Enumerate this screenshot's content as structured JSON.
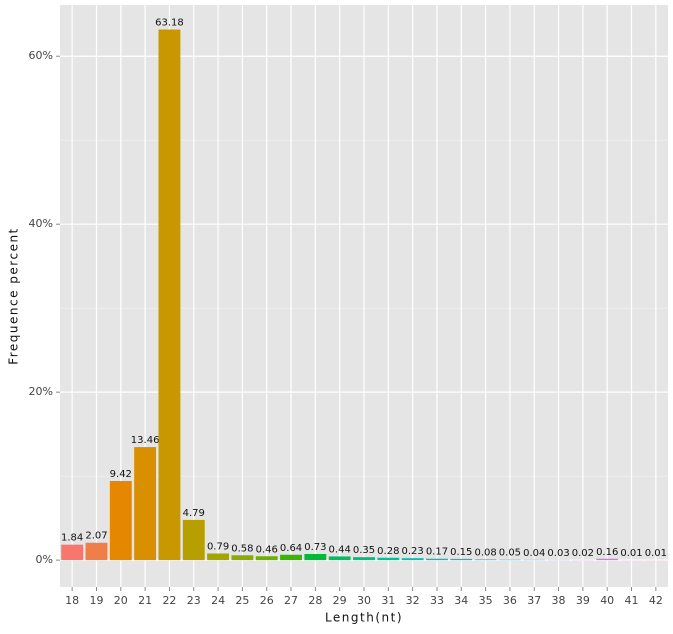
{
  "chart_data": {
    "type": "bar",
    "x_label": "Length(nt)",
    "y_label": "Frequence percent",
    "categories": [
      "18",
      "19",
      "20",
      "21",
      "22",
      "23",
      "24",
      "25",
      "26",
      "27",
      "28",
      "29",
      "30",
      "31",
      "32",
      "33",
      "34",
      "35",
      "36",
      "37",
      "38",
      "39",
      "40",
      "41",
      "42"
    ],
    "values": [
      1.84,
      2.07,
      9.42,
      13.46,
      63.18,
      4.79,
      0.79,
      0.58,
      0.46,
      0.64,
      0.73,
      0.44,
      0.35,
      0.28,
      0.23,
      0.17,
      0.15,
      0.08,
      0.05,
      0.04,
      0.03,
      0.02,
      0.16,
      0.01,
      0.01
    ],
    "colors": [
      "#F8766D",
      "#EF7F49",
      "#E58700",
      "#D89000",
      "#C99800",
      "#B79F00",
      "#A3A500",
      "#8BAB00",
      "#6BB100",
      "#39B600",
      "#00BA38",
      "#00BD5F",
      "#00BF7D",
      "#00C097",
      "#00C0AF",
      "#00BFC4",
      "#00BCD8",
      "#00B8E7",
      "#00B0F6",
      "#35A2FF",
      "#9590FF",
      "#C77CFF",
      "#E76BF3",
      "#FA62DB",
      "#FF6C91"
    ],
    "ylim": [
      -3.2,
      66.1
    ],
    "yticks": [
      {
        "value": 0,
        "label": "0%"
      },
      {
        "value": 20,
        "label": "20%"
      },
      {
        "value": 40,
        "label": "40%"
      },
      {
        "value": 60,
        "label": "60%"
      }
    ],
    "grid": true
  }
}
